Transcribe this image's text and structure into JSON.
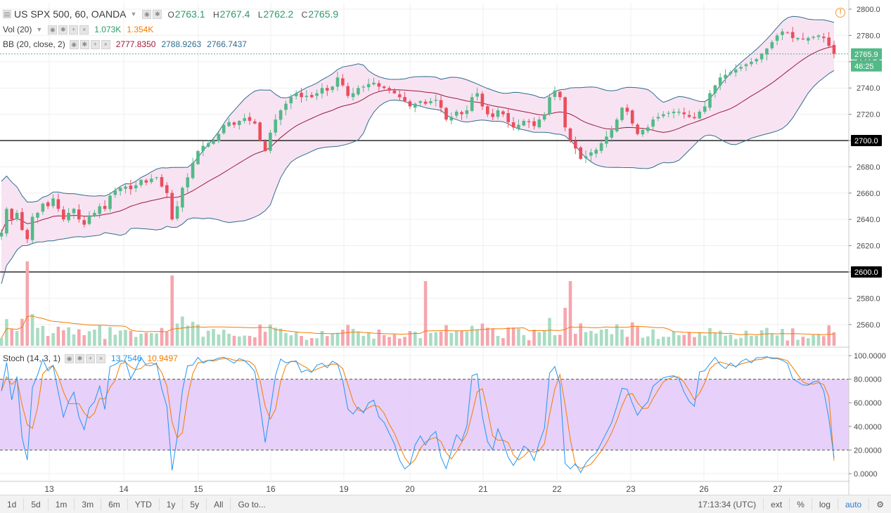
{
  "symbol_title": "US SPX 500, 60, OANDA",
  "ohlc": {
    "o_label": "O",
    "o": "2763.1",
    "h_label": "H",
    "h": "2767.4",
    "l_label": "L",
    "l": "2762.2",
    "c_label": "C",
    "c": "2765.9"
  },
  "vol_legend": {
    "label": "Vol (20)",
    "v1": "1.073K",
    "v2": "1.354K"
  },
  "bb_legend": {
    "label": "BB (20, close, 2)",
    "v1": "2777.8350",
    "v2": "2788.9263",
    "v3": "2766.7437"
  },
  "stoch_legend": {
    "label": "Stoch (14, 3, 1)",
    "v1": "13.7546",
    "v2": "10.9497"
  },
  "price_axis": {
    "ticks": [
      "2800.0",
      "2780.0",
      "2760.0",
      "2740.0",
      "2720.0",
      "2700.0",
      "2680.0",
      "2660.0",
      "2640.0",
      "2620.0",
      "2600.0",
      "2580.0",
      "2560.0"
    ]
  },
  "price_markers": {
    "last": "2765.9",
    "countdown": "46:25",
    "line_2700": "2700.0",
    "line_2600": "2600.0"
  },
  "stoch_axis": {
    "ticks": [
      "100.0000",
      "80.0000",
      "60.0000",
      "40.0000",
      "20.0000",
      "0.0000"
    ]
  },
  "x_axis": {
    "labels": [
      "13",
      "14",
      "15",
      "16",
      "19",
      "20",
      "21",
      "22",
      "23",
      "26",
      "27"
    ]
  },
  "timeframes": [
    "1d",
    "5d",
    "1m",
    "3m",
    "6m",
    "YTD",
    "1y",
    "5y",
    "All"
  ],
  "goto_label": "Go to...",
  "bottom_right": {
    "time": "17:13:34 (UTC)",
    "ext": "ext",
    "pct": "%",
    "log": "log",
    "auto": "auto"
  },
  "colors": {
    "up": "#53b987",
    "down": "#eb4d5c",
    "bb_upper": "#2e6e8e",
    "bb_basis": "#9a1b3a",
    "bb_fill": "#f8e3f3",
    "stoch_k": "#2196f3",
    "stoch_d": "#f57c00",
    "stoch_band": "#e3c8f8"
  },
  "chart_data": {
    "type": "candlestick",
    "y_range": [
      2545,
      2805
    ],
    "close_series": [
      2630,
      2648,
      2640,
      2645,
      2632,
      2625,
      2642,
      2645,
      2652,
      2650,
      2656,
      2648,
      2640,
      2645,
      2648,
      2640,
      2636,
      2643,
      2645,
      2650,
      2648,
      2658,
      2662,
      2664,
      2665,
      2663,
      2666,
      2670,
      2668,
      2671,
      2672,
      2665,
      2660,
      2640,
      2650,
      2664,
      2672,
      2683,
      2692,
      2696,
      2698,
      2700,
      2705,
      2712,
      2714,
      2712,
      2715,
      2717,
      2715,
      2713,
      2700,
      2692,
      2706,
      2716,
      2723,
      2728,
      2733,
      2736,
      2733,
      2734,
      2733,
      2736,
      2740,
      2738,
      2741,
      2748,
      2742,
      2734,
      2736,
      2740,
      2741,
      2743,
      2744,
      2741,
      2740,
      2738,
      2736,
      2733,
      2730,
      2726,
      2728,
      2730,
      2728,
      2730,
      2731,
      2725,
      2716,
      2718,
      2722,
      2720,
      2723,
      2733,
      2736,
      2726,
      2720,
      2718,
      2723,
      2720,
      2714,
      2710,
      2712,
      2715,
      2714,
      2711,
      2716,
      2720,
      2733,
      2738,
      2733,
      2710,
      2700,
      2694,
      2686,
      2688,
      2691,
      2693,
      2698,
      2703,
      2708,
      2716,
      2725,
      2722,
      2713,
      2705,
      2708,
      2710,
      2716,
      2718,
      2720,
      2721,
      2722,
      2722,
      2720,
      2718,
      2717,
      2722,
      2726,
      2736,
      2742,
      2748,
      2750,
      2752,
      2754,
      2756,
      2758,
      2760,
      2762,
      2766,
      2770,
      2775,
      2780,
      2783,
      2782,
      2778,
      2778,
      2777,
      2778,
      2779,
      2780,
      2778,
      2772,
      2766
    ],
    "x_labels": [
      "13",
      "14",
      "15",
      "16",
      "19",
      "20",
      "21",
      "22",
      "23",
      "26",
      "27"
    ],
    "horizontal_lines": [
      2700,
      2600
    ],
    "bollinger": {
      "period": 20,
      "source": "close",
      "mult": 2,
      "last_basis": 2777.835,
      "last_upper": 2788.9263,
      "last_lower": 2766.7437
    },
    "volume": {
      "period": 20,
      "last": "1.073K",
      "ma": "1.354K"
    },
    "stochastic": {
      "params": [
        14,
        3,
        1
      ],
      "k_last": 13.7546,
      "d_last": 10.9497,
      "bands": [
        80,
        20
      ],
      "range": [
        0,
        100
      ]
    }
  }
}
